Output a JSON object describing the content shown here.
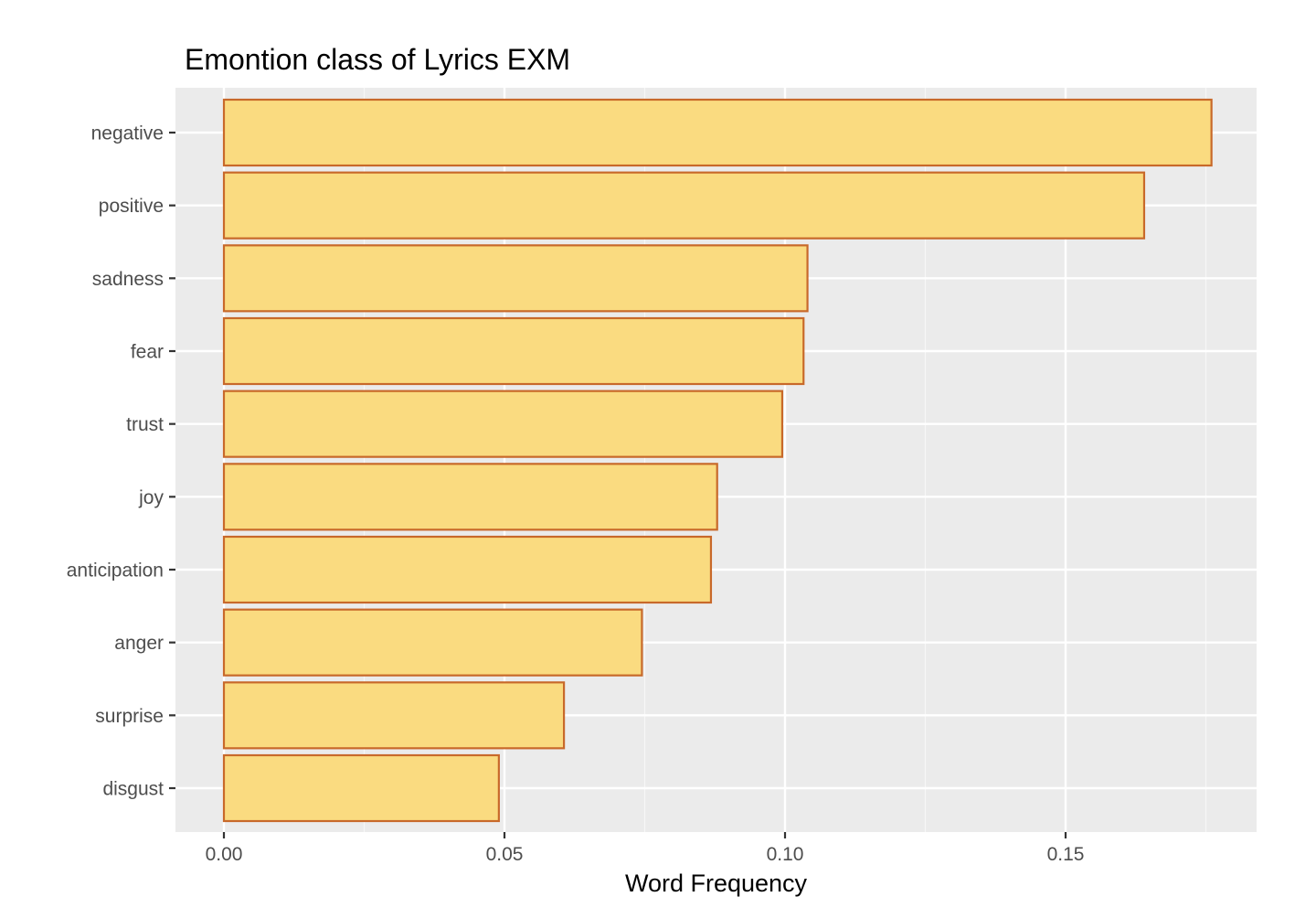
{
  "chart_data": {
    "type": "bar",
    "orientation": "horizontal",
    "title": "Emontion class of Lyrics EXM",
    "xlabel": "Word Frequency",
    "ylabel": "",
    "categories": [
      "negative",
      "positive",
      "sadness",
      "fear",
      "trust",
      "joy",
      "anticipation",
      "anger",
      "surprise",
      "disgust"
    ],
    "values": [
      0.176,
      0.164,
      0.104,
      0.1033,
      0.0995,
      0.0879,
      0.0868,
      0.0745,
      0.0606,
      0.049
    ],
    "xlim": [
      -0.0087,
      0.185
    ],
    "xticks": [
      0,
      0.05,
      0.1,
      0.15
    ],
    "xtick_labels": [
      "0.00",
      "0.05",
      "0.10",
      "0.15"
    ],
    "grid": true,
    "legend": "none",
    "colors": {
      "bar_fill": "#FADB80",
      "bar_stroke": "#C8692A",
      "panel_background": "#EBEBEB",
      "grid_major": "#FFFFFF",
      "grid_minor": "#F7F7F7",
      "tick_mark": "#333333",
      "tick_text": "#4D4D4D",
      "title_text": "#000000"
    }
  }
}
